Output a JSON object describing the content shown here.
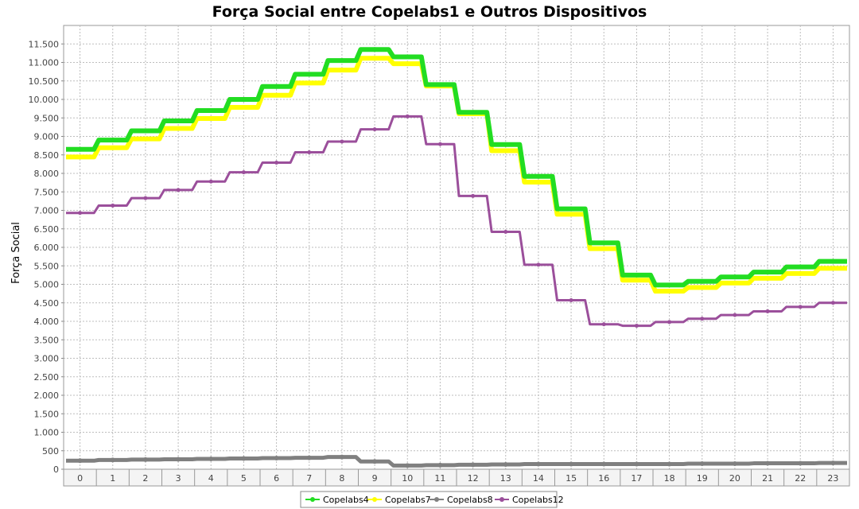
{
  "chart_data": {
    "type": "line",
    "title": "Força Social entre Copelabs1 e Outros Dispositivos",
    "xlabel": "",
    "ylabel": "Força Social",
    "categories": [
      "0",
      "1",
      "2",
      "3",
      "4",
      "5",
      "6",
      "7",
      "8",
      "9",
      "10",
      "11",
      "12",
      "13",
      "14",
      "15",
      "16",
      "17",
      "18",
      "19",
      "20",
      "21",
      "22",
      "23"
    ],
    "ylim": [
      0,
      12000
    ],
    "yticks": [
      0,
      500,
      1000,
      1500,
      2000,
      2500,
      3000,
      3500,
      4000,
      4500,
      5000,
      5500,
      6000,
      6500,
      7000,
      7500,
      8000,
      8500,
      9000,
      9500,
      10000,
      10500,
      11000,
      11500
    ],
    "ytick_labels": [
      "0",
      "500",
      "1.000",
      "1.500",
      "2.000",
      "2.500",
      "3.000",
      "3.500",
      "4.000",
      "4.500",
      "5.000",
      "5.500",
      "6.000",
      "6.500",
      "7.000",
      "7.500",
      "8.000",
      "8.500",
      "9.000",
      "9.500",
      "10.000",
      "10.500",
      "11.000",
      "11.500"
    ],
    "grid": true,
    "legend_position": "bottom",
    "series": [
      {
        "name": "Copelabs4",
        "color": "#22dd22",
        "values": [
          8650,
          8900,
          9150,
          9420,
          9700,
          10000,
          10350,
          10680,
          11050,
          11350,
          11150,
          10400,
          9650,
          8780,
          7920,
          7040,
          6120,
          5250,
          4980,
          5080,
          5200,
          5330,
          5470,
          5620
        ]
      },
      {
        "name": "Copelabs7",
        "color": "#ffff00",
        "values": [
          8530,
          8780,
          9020,
          9300,
          9570,
          9870,
          10200,
          10530,
          10880,
          11200,
          11050,
          10450,
          9700,
          8700,
          7850,
          6980,
          6050,
          5200,
          4900,
          5000,
          5120,
          5250,
          5380,
          5520
        ]
      },
      {
        "name": "Copelabs8",
        "color": "#808080",
        "values": [
          230,
          250,
          260,
          270,
          280,
          290,
          300,
          310,
          330,
          210,
          100,
          110,
          120,
          130,
          140,
          140,
          140,
          140,
          140,
          150,
          150,
          160,
          160,
          170
        ]
      },
      {
        "name": "Copelabs12",
        "color": "#9b4f9b",
        "values": [
          6930,
          7130,
          7330,
          7550,
          7780,
          8030,
          8290,
          8570,
          8860,
          9190,
          9540,
          8790,
          7390,
          6420,
          5530,
          4570,
          3920,
          3880,
          3980,
          4070,
          4170,
          4270,
          4390,
          4500
        ]
      }
    ]
  }
}
